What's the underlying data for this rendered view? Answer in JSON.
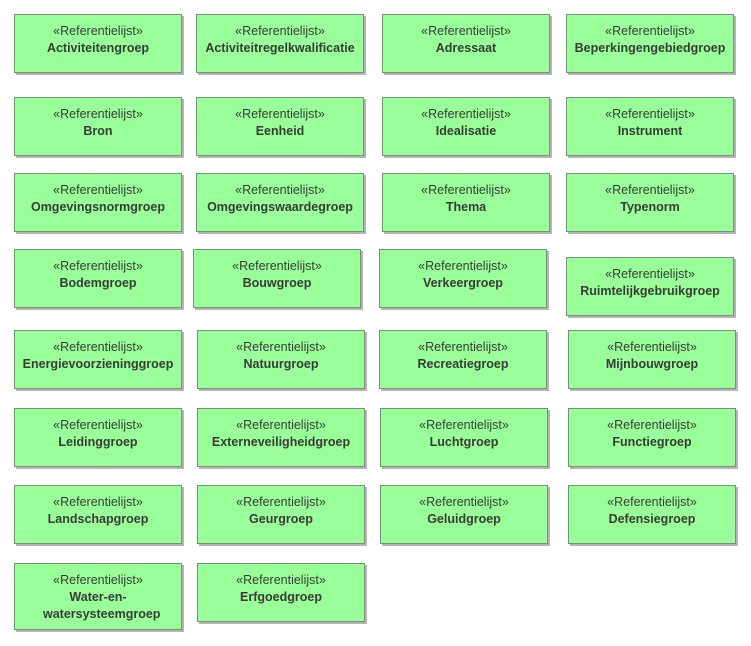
{
  "diagram": {
    "stereotype": "«Referentielijst»",
    "colors": {
      "fill": "#99ff99",
      "border": "#7a8f7a",
      "text": "#3a3a3a",
      "shadow": "#b4b4b4"
    },
    "classes": [
      "Activiteitengroep",
      "Activiteitregelkwalificatie",
      "Adressaat",
      "Beperkingengebiedgroep",
      "Bron",
      "Eenheid",
      "Idealisatie",
      "Instrument",
      "Omgevingsnormgroep",
      "Omgevingswaardegroep",
      "Thema",
      "Typenorm",
      "Bodemgroep",
      "Bouwgroep",
      "Verkeergroep",
      "Ruimtelijkgebruikgroep",
      "Energievoorzieninggroep",
      "Natuurgroep",
      "Recreatiegroep",
      "Mijnbouwgroep",
      "Leidinggroep",
      "Externeveiligheidgroep",
      "Luchtgroep",
      "Functiegroep",
      "Landschapgroep",
      "Geurgroep",
      "Geluidgroep",
      "Defensiegroep",
      "Water-en-watersysteemgroep",
      "Erfgoedgroep"
    ]
  }
}
